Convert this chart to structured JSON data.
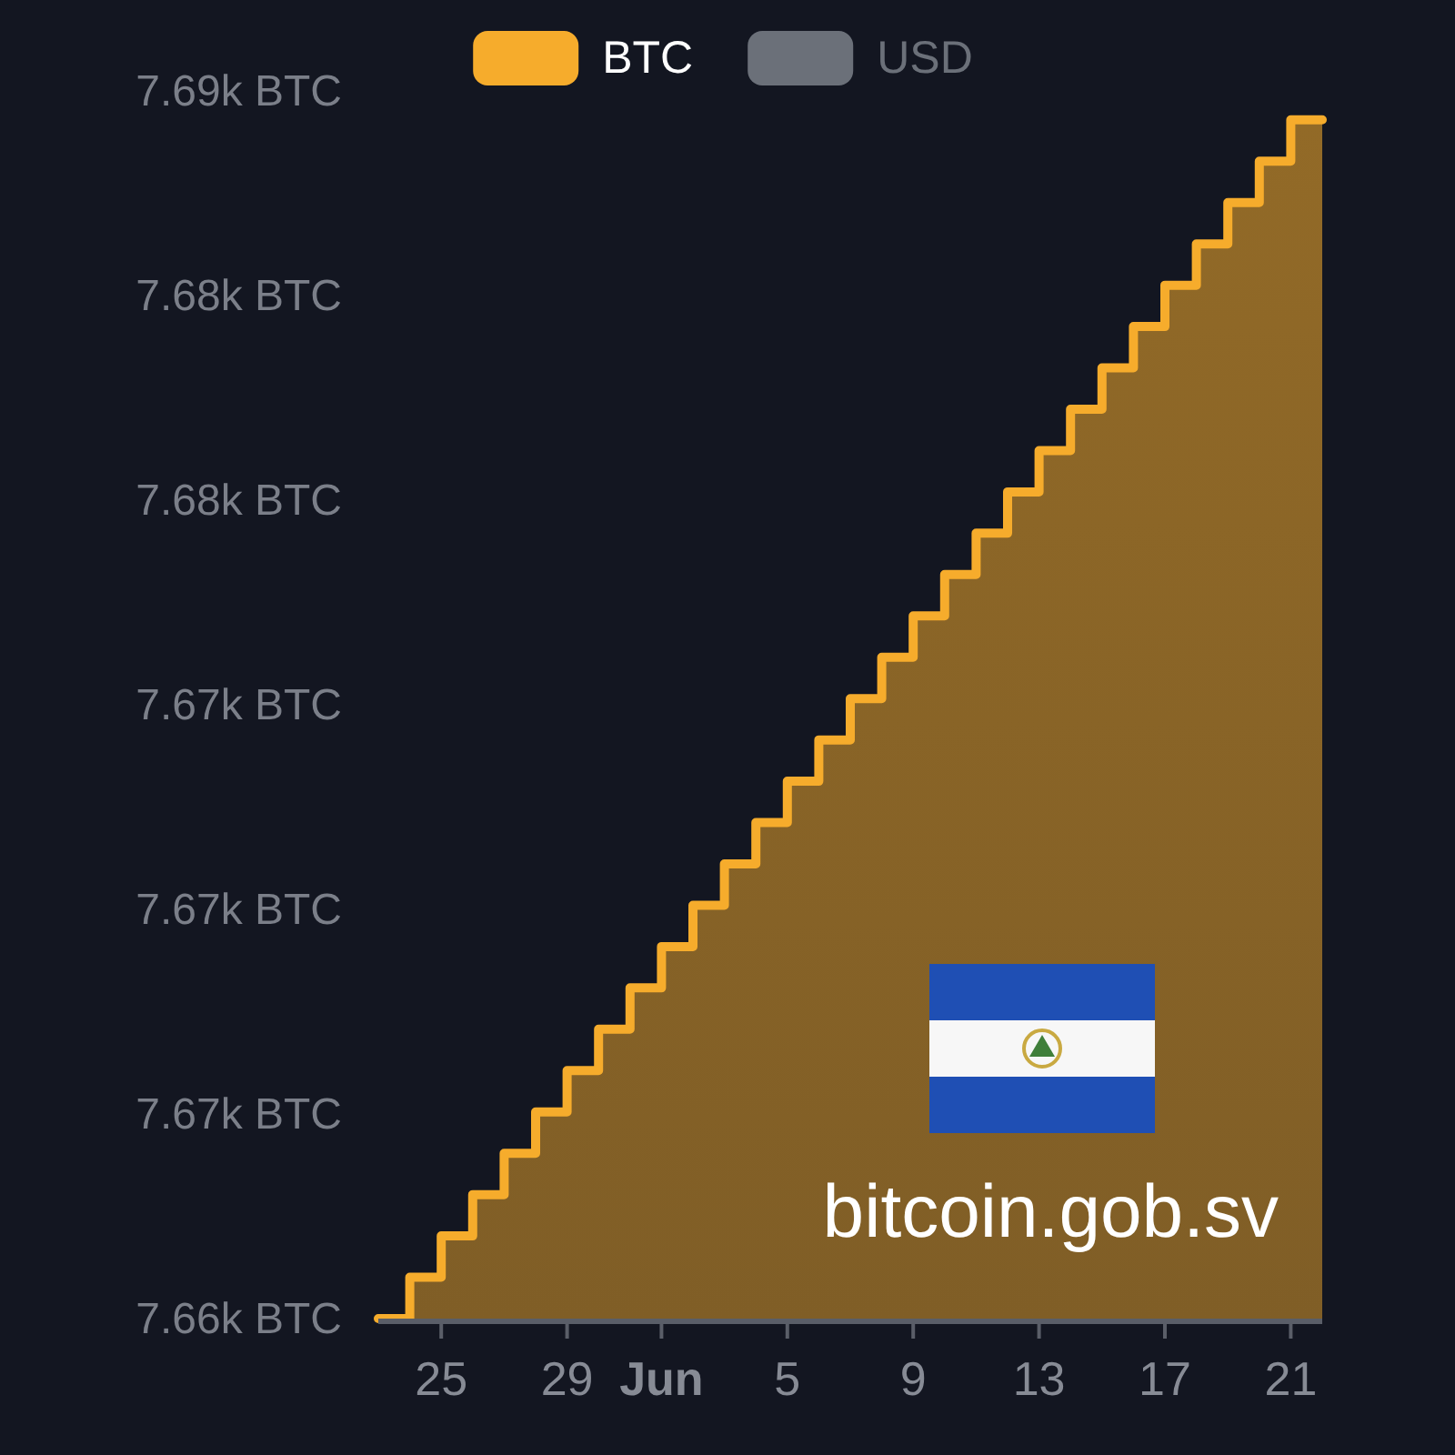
{
  "chart_data": {
    "type": "area",
    "x": [
      "--05-23",
      "--05-24",
      "--05-24",
      "--05-25",
      "--05-25",
      "--05-26",
      "--05-26",
      "--05-27",
      "--05-27",
      "--05-28",
      "--05-28",
      "--05-29",
      "--05-29",
      "--05-30",
      "--05-30",
      "--05-31",
      "--05-31",
      "--06-01",
      "--06-01",
      "--06-02",
      "--06-02",
      "--06-03",
      "--06-03",
      "--06-04",
      "--06-04",
      "--06-05",
      "--06-05",
      "--06-06",
      "--06-06",
      "--06-07",
      "--06-07",
      "--06-08",
      "--06-08",
      "--06-09",
      "--06-09",
      "--06-10",
      "--06-10",
      "--06-11",
      "--06-11",
      "--06-12",
      "--06-12",
      "--06-13",
      "--06-13",
      "--06-14",
      "--06-14",
      "--06-15",
      "--06-15",
      "--06-16",
      "--06-16",
      "--06-17",
      "--06-17",
      "--06-18",
      "--06-18",
      "--06-19",
      "--06-19",
      "--06-20",
      "--06-20",
      "--06-21",
      "--06-21",
      "--06-22"
    ],
    "xlim": [
      "--05-23",
      "--06-22"
    ],
    "xticks": [
      {
        "value": "--05-25",
        "label": "25"
      },
      {
        "value": "--05-29",
        "label": "29"
      },
      {
        "value": "--06-01",
        "label": "Jun"
      },
      {
        "value": "--06-05",
        "label": "5"
      },
      {
        "value": "--06-09",
        "label": "9"
      },
      {
        "value": "--06-13",
        "label": "13"
      },
      {
        "value": "--06-17",
        "label": "17"
      },
      {
        "value": "--06-21",
        "label": "21"
      }
    ],
    "ylim": [
      7660.1,
      7689.8
    ],
    "yticks": [
      {
        "value": 7660.1,
        "label": "7.66k BTC"
      },
      {
        "value": 7665.05,
        "label": "7.67k BTC"
      },
      {
        "value": 7670,
        "label": "7.67k BTC"
      },
      {
        "value": 7674.95,
        "label": "7.67k BTC"
      },
      {
        "value": 7679.9,
        "label": "7.68k BTC"
      },
      {
        "value": 7684.85,
        "label": "7.68k BTC"
      },
      {
        "value": 7689.8,
        "label": "7.69k BTC"
      }
    ],
    "series": [
      {
        "name": "BTC",
        "color": "#f6ac2c",
        "values": [
          7660.1,
          7660.1,
          7661.1,
          7661.1,
          7662.1,
          7662.1,
          7663.1,
          7663.1,
          7664.1,
          7664.1,
          7665.1,
          7665.1,
          7666.1,
          7666.1,
          7667.1,
          7667.1,
          7668.1,
          7668.1,
          7669.1,
          7669.1,
          7670.1,
          7670.1,
          7671.1,
          7671.1,
          7672.1,
          7672.1,
          7673.1,
          7673.1,
          7674.1,
          7674.1,
          7675.1,
          7675.1,
          7676.1,
          7676.1,
          7677.1,
          7677.1,
          7678.1,
          7678.1,
          7679.1,
          7679.1,
          7680.1,
          7680.1,
          7681.1,
          7681.1,
          7682.1,
          7682.1,
          7683.1,
          7683.1,
          7684.1,
          7684.1,
          7685.1,
          7685.1,
          7686.1,
          7686.1,
          7687.1,
          7687.1,
          7688.1,
          7688.1,
          7689.1,
          7689.1
        ]
      },
      {
        "name": "USD",
        "color": "#6b7079",
        "values": [
          null,
          null,
          null,
          null,
          null,
          null,
          null,
          null,
          null,
          null,
          null,
          null,
          null,
          null,
          null,
          null,
          null,
          null,
          null,
          null,
          null,
          null,
          null,
          null,
          null,
          null,
          null,
          null,
          null,
          null,
          null,
          null,
          null,
          null,
          null,
          null,
          null,
          null,
          null,
          null,
          null,
          null,
          null,
          null,
          null,
          null,
          null,
          null,
          null,
          null,
          null,
          null,
          null,
          null,
          null,
          null,
          null,
          null,
          null,
          null
        ]
      }
    ],
    "legend": "top",
    "annotations": [
      "bitcoin.gob.sv"
    ]
  }
}
